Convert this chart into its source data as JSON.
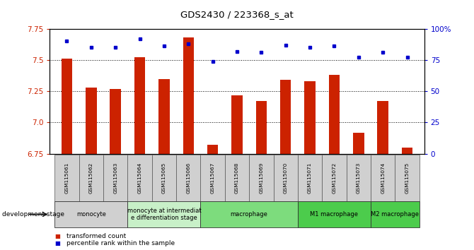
{
  "title": "GDS2430 / 223368_s_at",
  "samples": [
    "GSM115061",
    "GSM115062",
    "GSM115063",
    "GSM115064",
    "GSM115065",
    "GSM115066",
    "GSM115067",
    "GSM115068",
    "GSM115069",
    "GSM115070",
    "GSM115071",
    "GSM115072",
    "GSM115073",
    "GSM115074",
    "GSM115075"
  ],
  "bar_values": [
    7.51,
    7.28,
    7.27,
    7.52,
    7.35,
    7.68,
    6.82,
    7.22,
    7.17,
    7.34,
    7.33,
    7.38,
    6.92,
    7.17,
    6.8
  ],
  "dot_values": [
    90,
    85,
    85,
    92,
    86,
    88,
    74,
    82,
    81,
    87,
    85,
    86,
    77,
    81,
    77
  ],
  "bar_color": "#CC2200",
  "dot_color": "#0000CC",
  "ylim_left": [
    6.75,
    7.75
  ],
  "ylim_right": [
    0,
    100
  ],
  "yticks_left": [
    6.75,
    7.0,
    7.25,
    7.5,
    7.75
  ],
  "yticks_right": [
    0,
    25,
    50,
    75,
    100
  ],
  "ytick_labels_right": [
    "0",
    "25",
    "50",
    "75",
    "100%"
  ],
  "stage_groups": [
    {
      "label": "monocyte",
      "start": 0,
      "end": 3,
      "color": "#d0d0d0"
    },
    {
      "label": "monocyte at intermediat\ne differentiation stage",
      "start": 3,
      "end": 6,
      "color": "#c8f0c8"
    },
    {
      "label": "macrophage",
      "start": 6,
      "end": 10,
      "color": "#7ddc7d"
    },
    {
      "label": "M1 macrophage",
      "start": 10,
      "end": 13,
      "color": "#4ccc4c"
    },
    {
      "label": "M2 macrophage",
      "start": 13,
      "end": 15,
      "color": "#4ccc4c"
    }
  ],
  "dev_stage_label": "development stage",
  "legend_items": [
    {
      "label": "transformed count",
      "color": "#CC2200"
    },
    {
      "label": "percentile rank within the sample",
      "color": "#0000CC"
    }
  ]
}
